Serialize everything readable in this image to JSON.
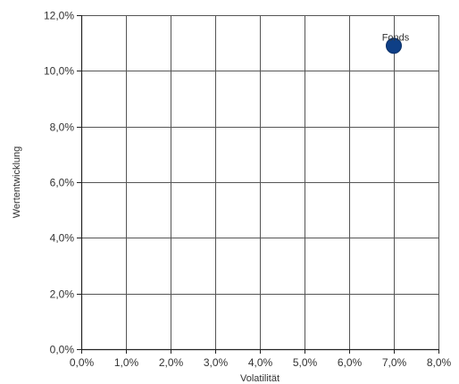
{
  "chart_data": {
    "type": "scatter",
    "title": "",
    "xlabel": "Volatilität",
    "ylabel": "Wertentwicklung",
    "xlim": [
      0,
      8
    ],
    "ylim": [
      0,
      12
    ],
    "x_ticks": [
      0,
      1,
      2,
      3,
      4,
      5,
      6,
      7,
      8
    ],
    "y_ticks": [
      0,
      2,
      4,
      6,
      8,
      10,
      12
    ],
    "x_tick_labels": [
      "0,0%",
      "1,0%",
      "2,0%",
      "3,0%",
      "4,0%",
      "5,0%",
      "6,0%",
      "7,0%",
      "8,0%"
    ],
    "y_tick_labels": [
      "0,0%",
      "2,0%",
      "4,0%",
      "6,0%",
      "8,0%",
      "10,0%",
      "12,0%"
    ],
    "grid": true,
    "points": [
      {
        "label": "Fonds",
        "x": 7.0,
        "y": 10.9
      }
    ],
    "colors": {
      "point": "#0e3f86",
      "grid": "#555555",
      "axis": "#222222"
    }
  }
}
